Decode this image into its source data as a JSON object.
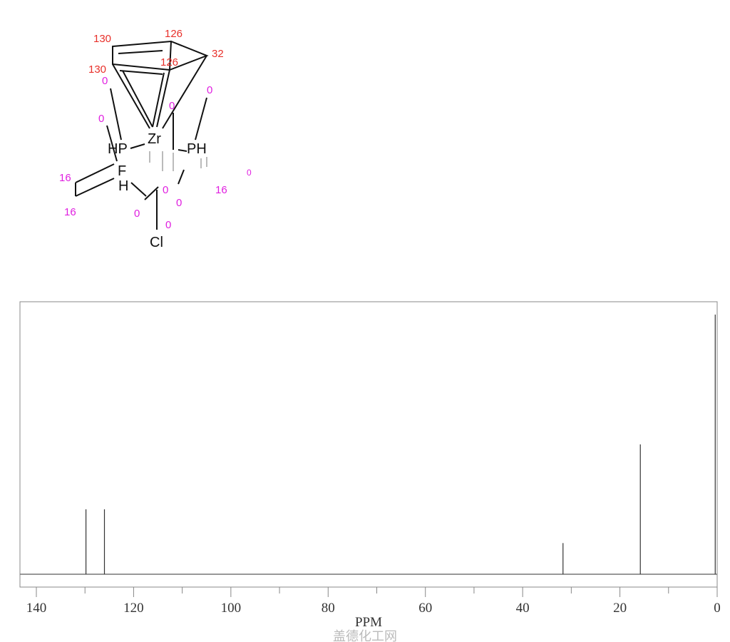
{
  "molecule": {
    "atoms": {
      "zr": "Zr",
      "hp": "HP",
      "ph": "PH",
      "f": "F",
      "h": "H",
      "cl": "Cl"
    },
    "shift_labels_red": [
      "130",
      "126",
      "32",
      "126",
      "130"
    ],
    "shift_labels_pink": [
      "0",
      "0",
      "0",
      "0",
      "16",
      "16",
      "0",
      "0",
      "16",
      "0",
      "0",
      "0"
    ]
  },
  "chart_data": {
    "type": "stick-spectrum",
    "title": "",
    "xlabel": "PPM",
    "ylabel": "",
    "xlim": [
      143,
      0
    ],
    "x_reversed": true,
    "xticks": [
      140,
      120,
      100,
      80,
      60,
      40,
      20,
      0
    ],
    "xtick_labels": [
      "140",
      "120",
      "100",
      "80",
      "60",
      "40",
      "20",
      "0"
    ],
    "minor_tick_step": 10,
    "grid": false,
    "peaks": [
      {
        "ppm": 129.8,
        "intensity": 0.25
      },
      {
        "ppm": 126.0,
        "intensity": 0.25
      },
      {
        "ppm": 31.7,
        "intensity": 0.12
      },
      {
        "ppm": 15.8,
        "intensity": 0.5
      },
      {
        "ppm": 0.4,
        "intensity": 1.0
      }
    ],
    "color": "#333333"
  },
  "watermark": "盖德化工网"
}
